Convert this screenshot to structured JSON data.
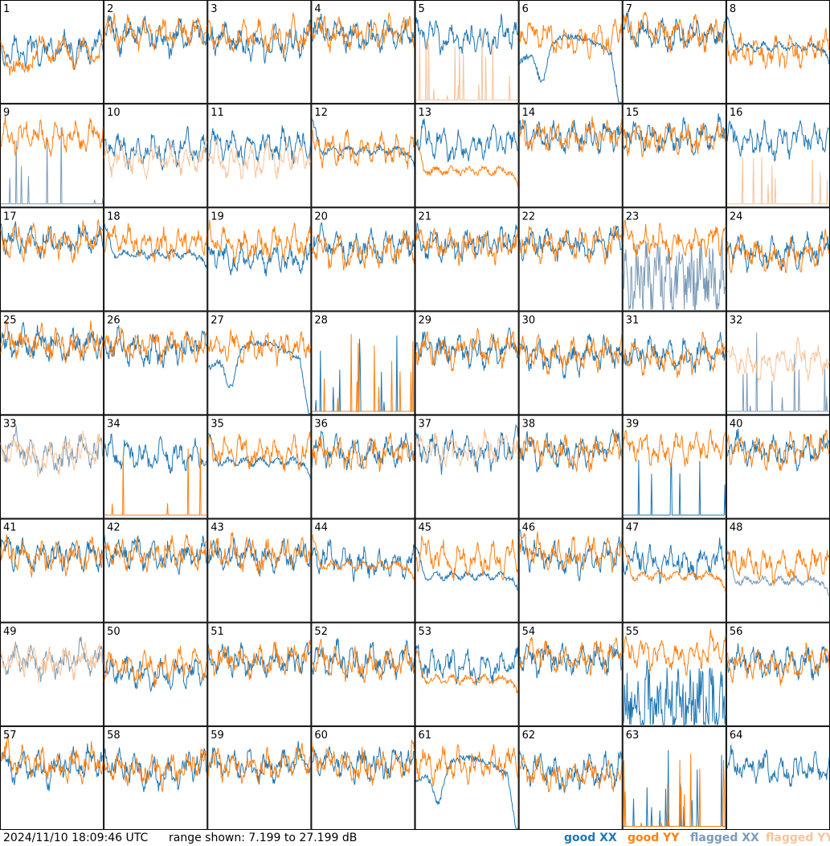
{
  "footer": {
    "timestamp": "2024/11/10 18:09:46 UTC",
    "range_label": "range shown: 7.199 to 27.199 dB",
    "legend": [
      {
        "label": "good XX",
        "color": "#1f77b4"
      },
      {
        "label": "good YY",
        "color": "#ff7f0e"
      },
      {
        "label": "flagged XX",
        "color": "#7a9ab8"
      },
      {
        "label": "flagged YY",
        "color": "#f7c49a"
      }
    ]
  },
  "chart_data": {
    "type": "line",
    "layout": "small-multiples",
    "rows": 8,
    "cols": 8,
    "ylim": [
      7.199,
      27.199
    ],
    "units": "dB",
    "colors": {
      "good_xx": "#1f77b4",
      "good_yy": "#ff7f0e",
      "flagged_xx": "#7a9ab8",
      "flagged_yy": "#f7c49a"
    },
    "tiles": [
      {
        "label": "1",
        "xx": {
          "status": "good",
          "profile": "ripple",
          "level": 0.55
        },
        "yy": {
          "status": "good",
          "profile": "dip",
          "level": 0.5
        }
      },
      {
        "label": "2",
        "xx": {
          "status": "good",
          "profile": "ripple",
          "level": 0.72
        },
        "yy": {
          "status": "good",
          "profile": "ripple",
          "level": 0.74
        }
      },
      {
        "label": "3",
        "xx": {
          "status": "good",
          "profile": "ripple",
          "level": 0.66
        },
        "yy": {
          "status": "good",
          "profile": "ripple",
          "level": 0.68
        }
      },
      {
        "label": "4",
        "xx": {
          "status": "good",
          "profile": "ripple",
          "level": 0.72
        },
        "yy": {
          "status": "good",
          "profile": "ripple",
          "level": 0.73
        }
      },
      {
        "label": "5",
        "xx": {
          "status": "good",
          "profile": "ripple",
          "level": 0.68
        },
        "yy": {
          "status": "flagged",
          "profile": "spikes",
          "level": 0.05
        }
      },
      {
        "label": "6",
        "xx": {
          "status": "good",
          "profile": "drop",
          "level": 0.4
        },
        "yy": {
          "status": "good",
          "profile": "ripple",
          "level": 0.68
        }
      },
      {
        "label": "7",
        "xx": {
          "status": "good",
          "profile": "ripple",
          "level": 0.7
        },
        "yy": {
          "status": "good",
          "profile": "ripple",
          "level": 0.72
        }
      },
      {
        "label": "8",
        "xx": {
          "status": "good",
          "profile": "flatdip",
          "level": 0.55
        },
        "yy": {
          "status": "good",
          "profile": "ripple",
          "level": 0.55
        }
      },
      {
        "label": "9",
        "xx": {
          "status": "flagged",
          "profile": "spikes",
          "level": 0.05
        },
        "yy": {
          "status": "good",
          "profile": "ripple",
          "level": 0.72
        }
      },
      {
        "label": "10",
        "xx": {
          "status": "good",
          "profile": "ripple",
          "level": 0.6
        },
        "yy": {
          "status": "flagged",
          "profile": "ripple",
          "level": 0.5
        }
      },
      {
        "label": "11",
        "xx": {
          "status": "good",
          "profile": "ripple",
          "level": 0.62
        },
        "yy": {
          "status": "flagged",
          "profile": "ripple",
          "level": 0.5
        }
      },
      {
        "label": "12",
        "xx": {
          "status": "good",
          "profile": "flatdip",
          "level": 0.55
        },
        "yy": {
          "status": "good",
          "profile": "ripple",
          "level": 0.6
        }
      },
      {
        "label": "13",
        "xx": {
          "status": "good",
          "profile": "ripple",
          "level": 0.65
        },
        "yy": {
          "status": "good",
          "profile": "flatdip",
          "level": 0.35
        }
      },
      {
        "label": "14",
        "xx": {
          "status": "good",
          "profile": "ripple",
          "level": 0.72
        },
        "yy": {
          "status": "good",
          "profile": "ripple",
          "level": 0.72
        }
      },
      {
        "label": "15",
        "xx": {
          "status": "good",
          "profile": "ripple",
          "level": 0.7
        },
        "yy": {
          "status": "good",
          "profile": "ripple",
          "level": 0.7
        }
      },
      {
        "label": "16",
        "xx": {
          "status": "good",
          "profile": "ripple",
          "level": 0.7
        },
        "yy": {
          "status": "flagged",
          "profile": "spikes",
          "level": 0.05
        }
      },
      {
        "label": "17",
        "xx": {
          "status": "good",
          "profile": "ripple",
          "level": 0.72
        },
        "yy": {
          "status": "good",
          "profile": "ripple",
          "level": 0.72
        }
      },
      {
        "label": "18",
        "xx": {
          "status": "good",
          "profile": "flatdip",
          "level": 0.55
        },
        "yy": {
          "status": "good",
          "profile": "ripple",
          "level": 0.68
        }
      },
      {
        "label": "19",
        "xx": {
          "status": "good",
          "profile": "ripple",
          "level": 0.55
        },
        "yy": {
          "status": "good",
          "profile": "ripple",
          "level": 0.7
        }
      },
      {
        "label": "20",
        "xx": {
          "status": "good",
          "profile": "ripple",
          "level": 0.68
        },
        "yy": {
          "status": "good",
          "profile": "ripple",
          "level": 0.62
        }
      },
      {
        "label": "21",
        "xx": {
          "status": "good",
          "profile": "ripple",
          "level": 0.7
        },
        "yy": {
          "status": "good",
          "profile": "ripple",
          "level": 0.7
        }
      },
      {
        "label": "22",
        "xx": {
          "status": "good",
          "profile": "ripple",
          "level": 0.7
        },
        "yy": {
          "status": "good",
          "profile": "ripple",
          "level": 0.7
        }
      },
      {
        "label": "23",
        "xx": {
          "status": "flagged",
          "profile": "noisy",
          "level": 0.3
        },
        "yy": {
          "status": "good",
          "profile": "ripple",
          "level": 0.72
        }
      },
      {
        "label": "24",
        "xx": {
          "status": "good",
          "profile": "ripple",
          "level": 0.62
        },
        "yy": {
          "status": "good",
          "profile": "ripple",
          "level": 0.6
        }
      },
      {
        "label": "25",
        "xx": {
          "status": "good",
          "profile": "ripple",
          "level": 0.72
        },
        "yy": {
          "status": "good",
          "profile": "ripple",
          "level": 0.72
        }
      },
      {
        "label": "26",
        "xx": {
          "status": "good",
          "profile": "ripple",
          "level": 0.7
        },
        "yy": {
          "status": "good",
          "profile": "ripple",
          "level": 0.7
        }
      },
      {
        "label": "27",
        "xx": {
          "status": "good",
          "profile": "drop",
          "level": 0.45
        },
        "yy": {
          "status": "good",
          "profile": "ripple",
          "level": 0.7
        }
      },
      {
        "label": "28",
        "xx": {
          "status": "good",
          "profile": "spikes",
          "level": 0.05
        },
        "yy": {
          "status": "good",
          "profile": "spikes",
          "level": 0.05
        }
      },
      {
        "label": "29",
        "xx": {
          "status": "good",
          "profile": "ripple",
          "level": 0.68
        },
        "yy": {
          "status": "good",
          "profile": "ripple",
          "level": 0.68
        }
      },
      {
        "label": "30",
        "xx": {
          "status": "good",
          "profile": "ripple",
          "level": 0.62
        },
        "yy": {
          "status": "good",
          "profile": "ripple",
          "level": 0.64
        }
      },
      {
        "label": "31",
        "xx": {
          "status": "good",
          "profile": "ripple",
          "level": 0.62
        },
        "yy": {
          "status": "good",
          "profile": "ripple",
          "level": 0.58
        }
      },
      {
        "label": "32",
        "xx": {
          "status": "flagged",
          "profile": "spikes",
          "level": 0.05
        },
        "yy": {
          "status": "flagged",
          "profile": "ripple",
          "level": 0.55
        }
      },
      {
        "label": "33",
        "xx": {
          "status": "flagged",
          "profile": "ripple",
          "level": 0.68
        },
        "yy": {
          "status": "flagged",
          "profile": "ripple",
          "level": 0.68
        }
      },
      {
        "label": "34",
        "xx": {
          "status": "good",
          "profile": "ripple",
          "level": 0.68
        },
        "yy": {
          "status": "good",
          "profile": "spikes",
          "level": 0.05
        }
      },
      {
        "label": "35",
        "xx": {
          "status": "good",
          "profile": "flatdip",
          "level": 0.55
        },
        "yy": {
          "status": "good",
          "profile": "ripple",
          "level": 0.7
        }
      },
      {
        "label": "36",
        "xx": {
          "status": "good",
          "profile": "ripple",
          "level": 0.68
        },
        "yy": {
          "status": "good",
          "profile": "ripple",
          "level": 0.68
        }
      },
      {
        "label": "37",
        "xx": {
          "status": "good",
          "profile": "ripple",
          "level": 0.7
        },
        "yy": {
          "status": "flagged",
          "profile": "ripple",
          "level": 0.7
        }
      },
      {
        "label": "38",
        "xx": {
          "status": "good",
          "profile": "ripple",
          "level": 0.7
        },
        "yy": {
          "status": "good",
          "profile": "ripple",
          "level": 0.7
        }
      },
      {
        "label": "39",
        "xx": {
          "status": "good",
          "profile": "spikes",
          "level": 0.05
        },
        "yy": {
          "status": "good",
          "profile": "ripple",
          "level": 0.72
        }
      },
      {
        "label": "40",
        "xx": {
          "status": "good",
          "profile": "ripple",
          "level": 0.7
        },
        "yy": {
          "status": "good",
          "profile": "ripple",
          "level": 0.7
        }
      },
      {
        "label": "41",
        "xx": {
          "status": "good",
          "profile": "ripple",
          "level": 0.7
        },
        "yy": {
          "status": "good",
          "profile": "ripple",
          "level": 0.7
        }
      },
      {
        "label": "42",
        "xx": {
          "status": "good",
          "profile": "ripple",
          "level": 0.7
        },
        "yy": {
          "status": "good",
          "profile": "ripple",
          "level": 0.7
        }
      },
      {
        "label": "43",
        "xx": {
          "status": "good",
          "profile": "ripple",
          "level": 0.7
        },
        "yy": {
          "status": "good",
          "profile": "ripple",
          "level": 0.7
        }
      },
      {
        "label": "44",
        "xx": {
          "status": "good",
          "profile": "ripple",
          "level": 0.62
        },
        "yy": {
          "status": "good",
          "profile": "flatdip",
          "level": 0.55
        }
      },
      {
        "label": "45",
        "xx": {
          "status": "good",
          "profile": "flatdip",
          "level": 0.45
        },
        "yy": {
          "status": "good",
          "profile": "ripple",
          "level": 0.68
        }
      },
      {
        "label": "46",
        "xx": {
          "status": "good",
          "profile": "ripple",
          "level": 0.7
        },
        "yy": {
          "status": "good",
          "profile": "ripple",
          "level": 0.7
        }
      },
      {
        "label": "47",
        "xx": {
          "status": "good",
          "profile": "ripple",
          "level": 0.62
        },
        "yy": {
          "status": "good",
          "profile": "flatdip",
          "level": 0.45
        }
      },
      {
        "label": "48",
        "xx": {
          "status": "flagged",
          "profile": "flatdip",
          "level": 0.4
        },
        "yy": {
          "status": "good",
          "profile": "ripple",
          "level": 0.62
        }
      },
      {
        "label": "49",
        "xx": {
          "status": "flagged",
          "profile": "ripple",
          "level": 0.68
        },
        "yy": {
          "status": "flagged",
          "profile": "ripple",
          "level": 0.68
        }
      },
      {
        "label": "50",
        "xx": {
          "status": "good",
          "profile": "ripple",
          "level": 0.55
        },
        "yy": {
          "status": "good",
          "profile": "ripple",
          "level": 0.62
        }
      },
      {
        "label": "51",
        "xx": {
          "status": "good",
          "profile": "ripple",
          "level": 0.68
        },
        "yy": {
          "status": "good",
          "profile": "ripple",
          "level": 0.68
        }
      },
      {
        "label": "52",
        "xx": {
          "status": "good",
          "profile": "ripple",
          "level": 0.68
        },
        "yy": {
          "status": "good",
          "profile": "ripple",
          "level": 0.64
        }
      },
      {
        "label": "53",
        "xx": {
          "status": "good",
          "profile": "ripple",
          "level": 0.62
        },
        "yy": {
          "status": "good",
          "profile": "flatdip",
          "level": 0.45
        }
      },
      {
        "label": "54",
        "xx": {
          "status": "good",
          "profile": "ripple",
          "level": 0.7
        },
        "yy": {
          "status": "good",
          "profile": "ripple",
          "level": 0.7
        }
      },
      {
        "label": "55",
        "xx": {
          "status": "good",
          "profile": "noisy",
          "level": 0.2
        },
        "yy": {
          "status": "good",
          "profile": "ripple",
          "level": 0.72
        }
      },
      {
        "label": "56",
        "xx": {
          "status": "good",
          "profile": "ripple",
          "level": 0.66
        },
        "yy": {
          "status": "good",
          "profile": "ripple",
          "level": 0.62
        }
      },
      {
        "label": "57",
        "xx": {
          "status": "good",
          "profile": "ripple",
          "level": 0.68
        },
        "yy": {
          "status": "good",
          "profile": "ripple",
          "level": 0.68
        }
      },
      {
        "label": "58",
        "xx": {
          "status": "good",
          "profile": "ripple",
          "level": 0.64
        },
        "yy": {
          "status": "good",
          "profile": "ripple",
          "level": 0.64
        }
      },
      {
        "label": "59",
        "xx": {
          "status": "good",
          "profile": "ripple",
          "level": 0.68
        },
        "yy": {
          "status": "good",
          "profile": "ripple",
          "level": 0.68
        }
      },
      {
        "label": "60",
        "xx": {
          "status": "good",
          "profile": "ripple",
          "level": 0.68
        },
        "yy": {
          "status": "good",
          "profile": "ripple",
          "level": 0.68
        }
      },
      {
        "label": "61",
        "xx": {
          "status": "good",
          "profile": "drop",
          "level": 0.45
        },
        "yy": {
          "status": "good",
          "profile": "ripple",
          "level": 0.68
        }
      },
      {
        "label": "62",
        "xx": {
          "status": "good",
          "profile": "ripple",
          "level": 0.62
        },
        "yy": {
          "status": "good",
          "profile": "ripple",
          "level": 0.58
        }
      },
      {
        "label": "63",
        "xx": {
          "status": "good",
          "profile": "spikes",
          "level": 0.05
        },
        "yy": {
          "status": "good",
          "profile": "spikes",
          "level": 0.05
        }
      },
      {
        "label": "64",
        "xx": {
          "status": "good",
          "profile": "ripple",
          "level": 0.64
        },
        "yy": {
          "status": "good",
          "profile": "none",
          "level": 0
        }
      }
    ]
  }
}
